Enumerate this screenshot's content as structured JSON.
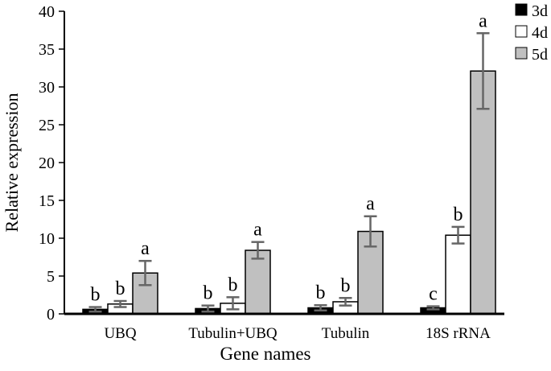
{
  "chart_data": {
    "type": "bar",
    "title": "",
    "xlabel": "Gene names",
    "ylabel": "Relative expression",
    "ylim": [
      0,
      40
    ],
    "yticks": [
      0,
      5,
      10,
      15,
      20,
      25,
      30,
      35,
      40
    ],
    "grid": false,
    "legend_position": "top-right",
    "categories": [
      "UBQ",
      "Tubulin+UBQ",
      "Tubulin",
      "18S rRNA"
    ],
    "series": [
      {
        "name": "3d",
        "color": "#000000",
        "values": [
          0.6,
          0.7,
          0.8,
          0.8
        ],
        "errors": [
          0.3,
          0.4,
          0.35,
          0.2
        ],
        "letters": [
          "b",
          "b",
          "b",
          "c"
        ]
      },
      {
        "name": "4d",
        "color": "#ffffff",
        "values": [
          1.3,
          1.4,
          1.6,
          10.4
        ],
        "errors": [
          0.4,
          0.8,
          0.5,
          1.1
        ],
        "letters": [
          "b",
          "b",
          "b",
          "b"
        ]
      },
      {
        "name": "5d",
        "color": "#c0c0c0",
        "values": [
          5.4,
          8.4,
          10.9,
          32.1
        ],
        "errors": [
          1.6,
          1.1,
          2.0,
          5.0
        ],
        "letters": [
          "a",
          "a",
          "a",
          "a"
        ]
      }
    ]
  }
}
